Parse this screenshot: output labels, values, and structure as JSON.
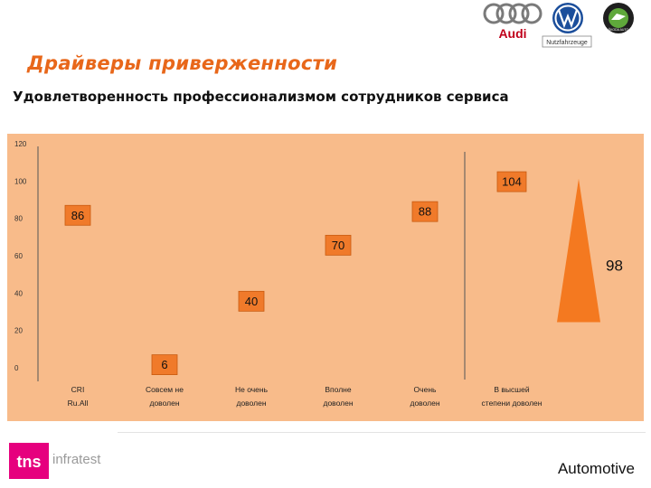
{
  "header": {
    "title": "Драйверы приверженности",
    "subtitle": "Удовлетворенность профессионализмом сотрудников сервиса",
    "brand_logos": [
      "audi-logo",
      "volkswagen-logo",
      "vw-nutzfahrzeuge-logo",
      "skoda-logo"
    ],
    "audi_text": "Audi",
    "vw_commercial_text": "Nutzfahrzeuge",
    "skoda_text": "ŠKODA AUTO"
  },
  "chart_data": {
    "type": "bar",
    "title": "",
    "xlabel": "",
    "ylabel": "",
    "ylim": [
      0,
      120
    ],
    "yticks": [
      0,
      20,
      40,
      60,
      80,
      100,
      120
    ],
    "grid": false,
    "background_color": "#f8bb8a",
    "label_box_color": "#f07a2a",
    "categories": [
      "CRI Ru.All",
      "Совсем не доволен",
      "Не очень доволен",
      "Вполне доволен",
      "Очень доволен",
      "В высшей степени доволен"
    ],
    "values": [
      86,
      6,
      40,
      70,
      88,
      104
    ],
    "value_labels": [
      "86",
      "6",
      "40",
      "70",
      "88",
      "104"
    ],
    "separator_after_category": 4,
    "side_indicator": {
      "value": 98,
      "label": "98",
      "color": "#f47920"
    }
  },
  "footer": {
    "brand_mark": "tns",
    "brand_text": "infratest",
    "segment_label": "Automotive",
    "tns_color": "#e6007e"
  }
}
